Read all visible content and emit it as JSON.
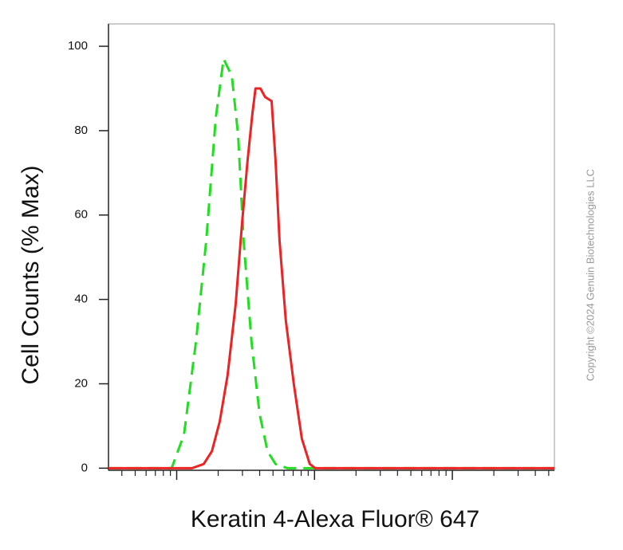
{
  "chart_data": {
    "type": "line",
    "x_label": "Keratin 4-Alexa Fluor® 647",
    "y_label": "Cell Counts (% Max)",
    "watermark": "Copyright ©2024 Genuin Biotechnologies LLC",
    "xlog": true,
    "xlim": [
      32,
      55000
    ],
    "xticks": [
      100,
      1000,
      10000
    ],
    "xminorticks": [
      40,
      50,
      60,
      70,
      80,
      90,
      200,
      300,
      400,
      500,
      600,
      700,
      800,
      900,
      2000,
      3000,
      4000,
      5000,
      6000,
      7000,
      8000,
      9000,
      20000,
      30000,
      40000,
      50000
    ],
    "ylim": [
      -0.5,
      105.3
    ],
    "yticks": [
      0,
      20,
      40,
      60,
      80,
      100
    ],
    "series": [
      {
        "color": "#22dd22",
        "dashed": true,
        "x": [
          32,
          92,
          113,
          138,
          164,
          192,
          219,
          251,
          279,
          306,
          349,
          399,
          456,
          521,
          636,
          727,
          55000
        ],
        "values": [
          0,
          0,
          8,
          30,
          54,
          83,
          97,
          93,
          79,
          54,
          30,
          13,
          4,
          1,
          0,
          0,
          0
        ]
      },
      {
        "color": "#ee2222",
        "dashed": false,
        "x": [
          32,
          129,
          157,
          180,
          205,
          234,
          268,
          298,
          327,
          354,
          373,
          405,
          438,
          488,
          521,
          557,
          619,
          707,
          809,
          923,
          1013,
          55000
        ],
        "values": [
          0,
          0,
          1,
          4,
          11,
          22,
          39,
          58,
          73,
          84,
          90,
          90,
          88,
          87,
          73,
          54,
          35,
          20,
          7,
          1,
          0,
          0
        ]
      }
    ]
  }
}
